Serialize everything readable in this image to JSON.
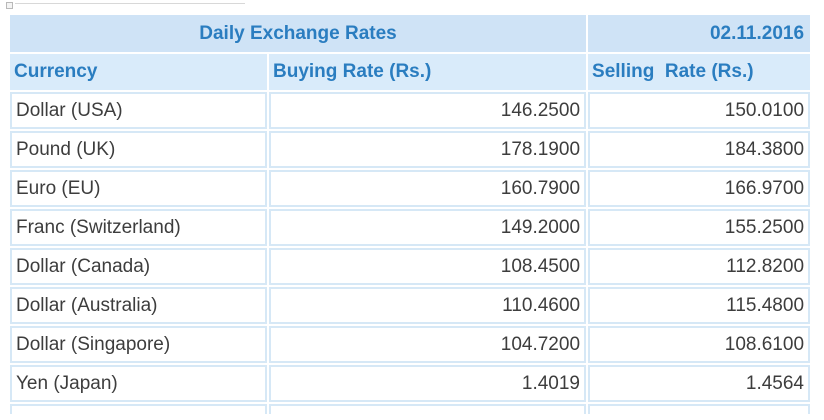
{
  "table": {
    "title": "Daily Exchange Rates",
    "date": "02.11.2016",
    "headers": {
      "currency": "Currency",
      "buying": "Buying Rate (Rs.)",
      "selling": "Selling  Rate (Rs.)"
    },
    "rows": [
      {
        "currency": "Dollar (USA)",
        "buying": "146.2500",
        "selling": "150.0100"
      },
      {
        "currency": "Pound (UK)",
        "buying": "178.1900",
        "selling": "184.3800"
      },
      {
        "currency": "Euro (EU)",
        "buying": "160.7900",
        "selling": "166.9700"
      },
      {
        "currency": "Franc (Switzerland)",
        "buying": "149.2000",
        "selling": "155.2500"
      },
      {
        "currency": "Dollar (Canada)",
        "buying": "108.4500",
        "selling": "112.8200"
      },
      {
        "currency": "Dollar (Australia)",
        "buying": "110.4600",
        "selling": "115.4800"
      },
      {
        "currency": "Dollar (Singapore)",
        "buying": "104.7200",
        "selling": "108.6100"
      },
      {
        "currency": "Yen (Japan)",
        "buying": "1.4019",
        "selling": "1.4564"
      }
    ]
  }
}
